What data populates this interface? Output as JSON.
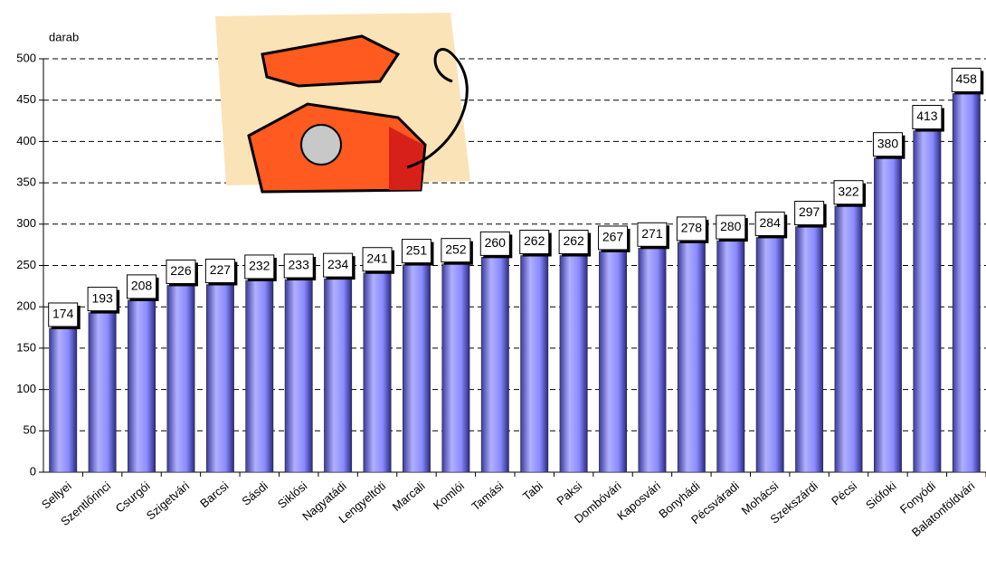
{
  "chart_data": {
    "type": "bar",
    "y_label": "darab",
    "categories": [
      "Sellyei",
      "Szentlőrinci",
      "Csurgói",
      "Szigetvári",
      "Barcsi",
      "Sásdi",
      "Siklósi",
      "Nagyatádi",
      "Lengyeltóti",
      "Marcali",
      "Komlói",
      "Tamási",
      "Tabi",
      "Paksi",
      "Dombóvári",
      "Kaposvári",
      "Bonyhádi",
      "Pécsváradi",
      "Mohácsi",
      "Szekszárdi",
      "Pécsi",
      "Siófoki",
      "Fonyódi",
      "Balatonföldvári"
    ],
    "values": [
      174,
      193,
      208,
      226,
      227,
      232,
      233,
      234,
      241,
      251,
      252,
      260,
      262,
      262,
      267,
      271,
      278,
      280,
      284,
      297,
      322,
      380,
      413,
      458
    ],
    "color": "#8a8aff",
    "ylim": [
      0,
      500
    ],
    "yticks": [
      0,
      50,
      100,
      150,
      200,
      250,
      300,
      350,
      400,
      450,
      500
    ],
    "grid": true
  }
}
